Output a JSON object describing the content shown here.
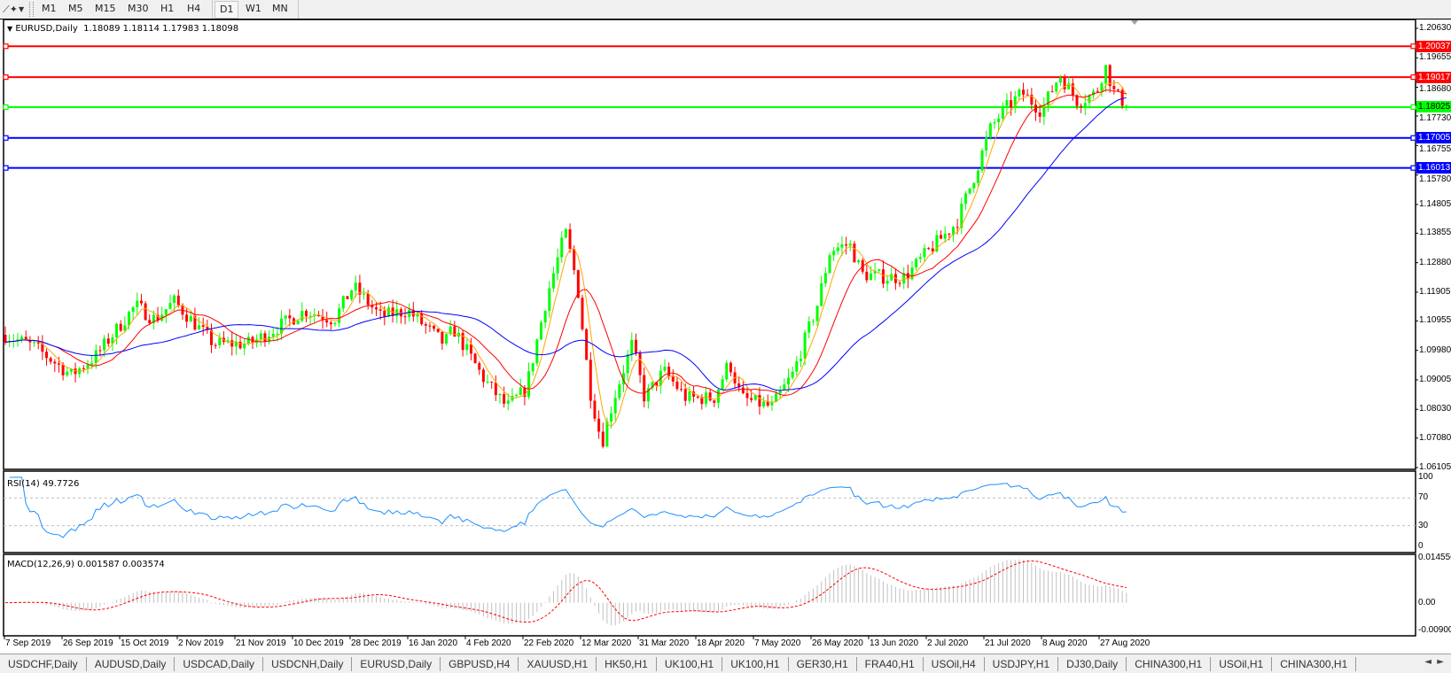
{
  "toolbar": {
    "timeframes": [
      "M1",
      "M5",
      "M15",
      "M30",
      "H1",
      "H4",
      "D1",
      "W1",
      "MN"
    ],
    "active_timeframe": "D1"
  },
  "chart": {
    "symbol_label": "EURUSD,Daily",
    "ohlc": "1.18089 1.18114 1.17983 1.18098",
    "colors": {
      "bull": "#00ff00",
      "bear": "#ff0000",
      "ma_fast": "#ffa500",
      "ma_mid": "#ff0000",
      "ma_slow": "#0000ff",
      "rsi": "#1e90ff",
      "macd_hist": "#c0c0c0",
      "macd_signal": "#ff0000"
    },
    "price_axis": [
      "1.20630",
      "1.19655",
      "1.18680",
      "1.17730",
      "1.16755",
      "1.15780",
      "1.14805",
      "1.13855",
      "1.12880",
      "1.11905",
      "1.10955",
      "1.09980",
      "1.09005",
      "1.08030",
      "1.07080",
      "1.06105"
    ],
    "price_range": [
      1.06105,
      1.2063
    ],
    "current_price": 1.18098,
    "levels": [
      {
        "price": "1.20037",
        "color": "#ff0000"
      },
      {
        "price": "1.19017",
        "color": "#ff0000"
      },
      {
        "price": "1.18025",
        "color": "#00ff00"
      },
      {
        "price": "1.17005",
        "color": "#0000ff"
      },
      {
        "price": "1.16013",
        "color": "#0000ff"
      }
    ],
    "date_axis": [
      "7 Sep 2019",
      "26 Sep 2019",
      "15 Oct 2019",
      "2 Nov 2019",
      "21 Nov 2019",
      "10 Dec 2019",
      "28 Dec 2019",
      "16 Jan 2020",
      "4 Feb 2020",
      "22 Feb 2020",
      "12 Mar 2020",
      "31 Mar 2020",
      "18 Apr 2020",
      "7 May 2020",
      "26 May 2020",
      "13 Jun 2020",
      "2 Jul 2020",
      "21 Jul 2020",
      "8 Aug 2020",
      "27 Aug 2020"
    ],
    "price_path": [
      [
        "2019-09-06",
        1.1055
      ],
      [
        "2019-09-17",
        1.1009
      ],
      [
        "2019-09-29",
        1.0917
      ],
      [
        "2019-10-07",
        1.0978
      ],
      [
        "2019-10-20",
        1.1147
      ],
      [
        "2019-10-26",
        1.11
      ],
      [
        "2019-11-01",
        1.116
      ],
      [
        "2019-11-14",
        1.102
      ],
      [
        "2019-11-26",
        1.102
      ],
      [
        "2019-12-14",
        1.113
      ],
      [
        "2019-12-23",
        1.11
      ],
      [
        "2019-12-29",
        1.121
      ],
      [
        "2020-01-07",
        1.111
      ],
      [
        "2020-01-16",
        1.113
      ],
      [
        "2020-01-28",
        1.102
      ],
      [
        "2020-01-31",
        1.107
      ],
      [
        "2020-02-10",
        1.09
      ],
      [
        "2020-02-17",
        1.081
      ],
      [
        "2020-02-23",
        1.087
      ],
      [
        "2020-03-01",
        1.118
      ],
      [
        "2020-03-07",
        1.139
      ],
      [
        "2020-03-11",
        1.121
      ],
      [
        "2020-03-15",
        1.087
      ],
      [
        "2020-03-19",
        1.069
      ],
      [
        "2020-03-23",
        1.084
      ],
      [
        "2020-03-29",
        1.102
      ],
      [
        "2020-04-02",
        1.084
      ],
      [
        "2020-04-08",
        1.093
      ],
      [
        "2020-04-15",
        1.084
      ],
      [
        "2020-04-24",
        1.084
      ],
      [
        "2020-04-29",
        1.096
      ],
      [
        "2020-05-03",
        1.084
      ],
      [
        "2020-05-13",
        1.081
      ],
      [
        "2020-05-20",
        1.092
      ],
      [
        "2020-05-28",
        1.115
      ],
      [
        "2020-06-01",
        1.133
      ],
      [
        "2020-06-07",
        1.135
      ],
      [
        "2020-06-11",
        1.125
      ],
      [
        "2020-06-19",
        1.124
      ],
      [
        "2020-06-25",
        1.124
      ],
      [
        "2020-07-03",
        1.133
      ],
      [
        "2020-07-12",
        1.142
      ],
      [
        "2020-07-18",
        1.158
      ],
      [
        "2020-07-23",
        1.173
      ],
      [
        "2020-07-27",
        1.179
      ],
      [
        "2020-08-02",
        1.185
      ],
      [
        "2020-08-08",
        1.179
      ],
      [
        "2020-08-14",
        1.191
      ],
      [
        "2020-08-20",
        1.182
      ],
      [
        "2020-08-26",
        1.185
      ],
      [
        "2020-08-29",
        1.194
      ],
      [
        "2020-09-01",
        1.185
      ],
      [
        "2020-09-05",
        1.181
      ]
    ]
  },
  "rsi": {
    "label": "RSI(14) 49.7726",
    "axis": [
      "100",
      "70",
      "30",
      "0"
    ],
    "levels": [
      70,
      30
    ]
  },
  "macd": {
    "label": "MACD(12,26,9) 0.001587 0.003574",
    "axis": [
      "0.014556",
      "0.00",
      "-0.00900"
    ],
    "range": [
      -0.009,
      0.014556
    ]
  },
  "tabs": [
    "USDCHF,Daily",
    "AUDUSD,Daily",
    "USDCAD,Daily",
    "USDCNH,Daily",
    "EURUSD,Daily",
    "GBPUSD,H4",
    "XAUUSD,H1",
    "HK50,H1",
    "UK100,H1",
    "UK100,H1",
    "GER30,H1",
    "FRA40,H1",
    "USOil,H4",
    "USDJPY,H1",
    "DJ30,Daily",
    "CHINA300,H1",
    "USOil,H1",
    "CHINA300,H1"
  ],
  "tab_arrows": [
    "◄",
    "►"
  ]
}
